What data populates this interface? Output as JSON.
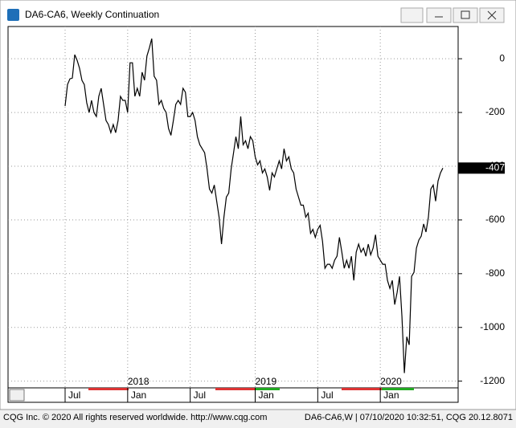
{
  "chart_data": {
    "type": "line",
    "title": "DA6-CA6, Weekly Continuation",
    "footer_left": "CQG Inc. © 2020 All rights reserved worldwide. http://www.cqg.com",
    "footer_right": "DA6-CA6,W | 07/10/2020 10:32:51, CQG 20.12.8071",
    "categories": [
      "Jul",
      null,
      null,
      null,
      null,
      null,
      null,
      null,
      null,
      null,
      null,
      null,
      null,
      null,
      null,
      null,
      null,
      null,
      null,
      null,
      null,
      null,
      null,
      null,
      null,
      null,
      "Jan",
      null,
      null,
      null,
      null,
      null,
      null,
      null,
      null,
      null,
      null,
      null,
      null,
      null,
      null,
      null,
      null,
      null,
      null,
      null,
      null,
      null,
      null,
      null,
      null,
      null,
      "Jul",
      null,
      null,
      null,
      null,
      null,
      null,
      null,
      null,
      null,
      null,
      null,
      null,
      null,
      null,
      null,
      null,
      null,
      null,
      null,
      null,
      null,
      null,
      null,
      null,
      null,
      null,
      "Jan",
      null,
      null,
      null,
      null,
      null,
      null,
      null,
      null,
      null,
      null,
      null,
      null,
      null,
      null,
      null,
      null,
      null,
      null,
      null,
      null,
      null,
      null,
      null,
      null,
      null,
      "Jul",
      null,
      null,
      null,
      null,
      null,
      null,
      null,
      null,
      null,
      null,
      null,
      null,
      null,
      null,
      null,
      null,
      null,
      null,
      null,
      null,
      null,
      null,
      null,
      null,
      null,
      "Jan",
      null,
      null,
      null,
      null,
      null,
      null,
      null,
      null,
      null,
      null,
      null,
      null,
      null,
      null,
      null,
      null,
      null,
      null,
      null,
      null,
      null,
      null,
      null,
      null,
      null,
      null
    ],
    "year_labels": [
      null,
      null,
      null,
      null,
      null,
      null,
      null,
      null,
      null,
      null,
      null,
      null,
      null,
      null,
      null,
      null,
      null,
      null,
      null,
      null,
      null,
      null,
      null,
      null,
      null,
      null,
      "2018",
      null,
      null,
      null,
      null,
      null,
      null,
      null,
      null,
      null,
      null,
      null,
      null,
      null,
      null,
      null,
      null,
      null,
      null,
      null,
      null,
      null,
      null,
      null,
      null,
      null,
      null,
      null,
      null,
      null,
      null,
      null,
      null,
      null,
      null,
      null,
      null,
      null,
      null,
      null,
      null,
      null,
      null,
      null,
      null,
      null,
      null,
      null,
      null,
      null,
      null,
      null,
      null,
      "2019",
      null,
      null,
      null,
      null,
      null,
      null,
      null,
      null,
      null,
      null,
      null,
      null,
      null,
      null,
      null,
      null,
      null,
      null,
      null,
      null,
      null,
      null,
      null,
      null,
      null,
      null,
      null,
      null,
      null,
      null,
      null,
      null,
      null,
      null,
      null,
      null,
      null,
      null,
      null,
      null,
      null,
      null,
      null,
      null,
      null,
      null,
      null,
      null,
      null,
      null,
      null,
      "2020",
      null,
      null,
      null,
      null,
      null,
      null,
      null,
      null,
      null,
      null,
      null,
      null,
      null,
      null,
      null,
      null,
      null,
      null,
      null,
      null,
      null,
      null,
      null,
      null,
      null,
      null
    ],
    "values": [
      -176,
      -96,
      -75,
      -72,
      15,
      -6,
      -36,
      -81,
      -96,
      -164,
      -200,
      -155,
      -200,
      -215,
      -140,
      -110,
      -170,
      -230,
      -245,
      -275,
      -245,
      -275,
      -230,
      -140,
      -155,
      -155,
      -200,
      -15,
      -15,
      -140,
      -110,
      -140,
      -50,
      -80,
      10,
      40,
      75,
      -65,
      -80,
      -170,
      -155,
      -185,
      -200,
      -260,
      -285,
      -230,
      -170,
      -155,
      -170,
      -110,
      -125,
      -215,
      -215,
      -200,
      -230,
      -290,
      -320,
      -335,
      -350,
      -410,
      -485,
      -500,
      -470,
      -530,
      -590,
      -690,
      -590,
      -515,
      -500,
      -410,
      -350,
      -290,
      -335,
      -215,
      -320,
      -305,
      -335,
      -290,
      -305,
      -365,
      -395,
      -380,
      -425,
      -410,
      -440,
      -490,
      -425,
      -440,
      -410,
      -380,
      -410,
      -335,
      -380,
      -365,
      -410,
      -425,
      -485,
      -515,
      -545,
      -545,
      -590,
      -575,
      -650,
      -635,
      -665,
      -635,
      -620,
      -680,
      -780,
      -765,
      -765,
      -780,
      -750,
      -735,
      -665,
      -720,
      -780,
      -750,
      -780,
      -735,
      -825,
      -720,
      -690,
      -720,
      -705,
      -735,
      -690,
      -730,
      -705,
      -655,
      -735,
      -750,
      -765,
      -765,
      -825,
      -855,
      -825,
      -915,
      -870,
      -810,
      -960,
      -1170,
      -1035,
      -1065,
      -810,
      -795,
      -705,
      -675,
      -660,
      -615,
      -645,
      -590,
      -485,
      -470,
      -530,
      -455,
      -425,
      -407
    ],
    "color": "#000000",
    "ylim": [
      -1225,
      120
    ],
    "yticks": [
      0,
      -200,
      -400,
      -600,
      -800,
      -1000,
      -1200
    ],
    "grid": true
  }
}
